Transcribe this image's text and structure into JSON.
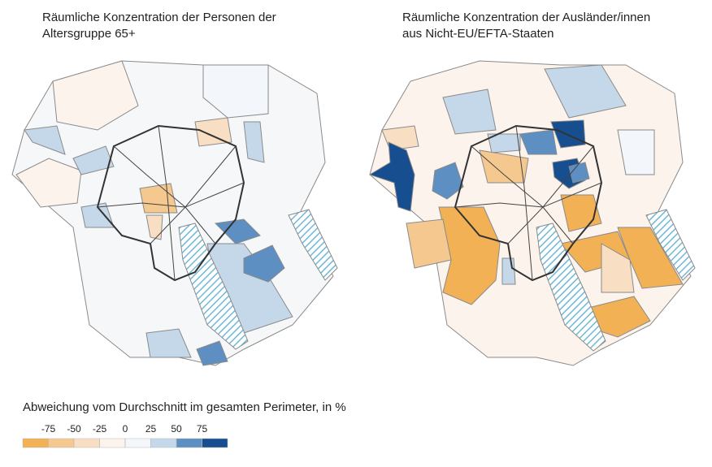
{
  "maps": [
    {
      "title": [
        "Räumliche Konzentration der Personen der",
        "Altersgruppe 65+"
      ]
    },
    {
      "title": [
        "Räumliche Konzentration der Ausländer/innen",
        "aus Nicht-EU/EFTA-Staaten"
      ]
    }
  ],
  "legend": {
    "title": "Abweichung vom Durchschnitt im gesamten Perimeter, in %",
    "ticks": [
      -75,
      -50,
      -25,
      0,
      25,
      50,
      75
    ],
    "colors": [
      "#f2b155",
      "#f5c88f",
      "#f8dfc4",
      "#fbf3ec",
      "#f3f6fa",
      "#c5d8ea",
      "#5d8fc3",
      "#174e8f"
    ]
  }
}
